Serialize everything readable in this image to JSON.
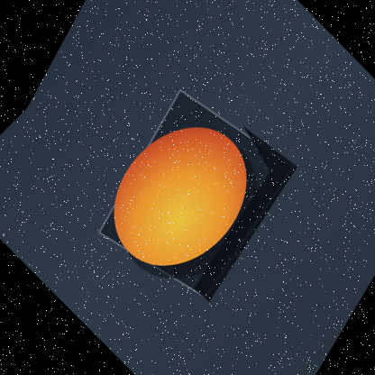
{
  "scene": {
    "subject": "mango",
    "colors": {
      "background": "#000000",
      "surface": "#2a3344",
      "surface_edge": "#36404f",
      "tray": "#1c2430",
      "tray_border": "#5b6571",
      "fruit_orange": "#e8902e",
      "fruit_red": "#c2402a",
      "fruit_yellow": "#e2be3c",
      "shadow": "#0b0e14",
      "noise": "#ffffff"
    },
    "noise_density": 0.09
  }
}
